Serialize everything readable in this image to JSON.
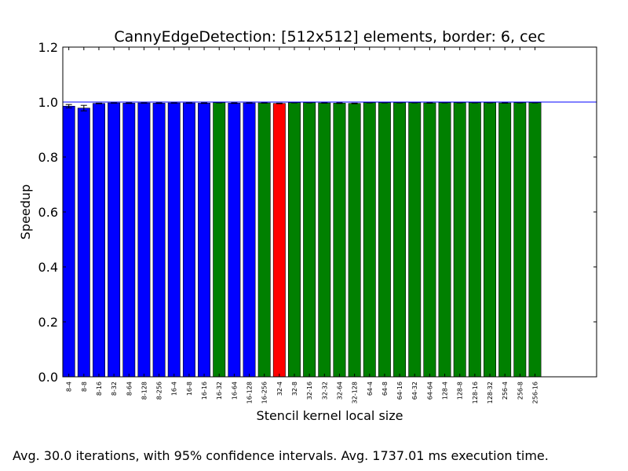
{
  "chart_data": {
    "type": "bar",
    "title": "CannyEdgeDetection: [512x512] elements, border: 6, cec",
    "xlabel": "Stencil kernel local size",
    "ylabel": "Speedup",
    "ylim": [
      0,
      1.2
    ],
    "yticks": [
      "0.0",
      "0.2",
      "0.4",
      "0.6",
      "0.8",
      "1.0",
      "1.2"
    ],
    "reference_line": 1.0,
    "categories": [
      "8-4",
      "8-8",
      "8-16",
      "8-32",
      "8-64",
      "8-128",
      "8-256",
      "16-4",
      "16-8",
      "16-16",
      "16-32",
      "16-64",
      "16-128",
      "16-256",
      "32-4",
      "32-8",
      "32-16",
      "32-32",
      "32-64",
      "32-128",
      "64-4",
      "64-8",
      "64-16",
      "64-32",
      "64-64",
      "128-4",
      "128-8",
      "128-16",
      "128-32",
      "256-4",
      "256-8",
      "256-16"
    ],
    "values": [
      0.985,
      0.978,
      0.995,
      0.997,
      0.996,
      0.997,
      0.996,
      0.997,
      0.997,
      0.996,
      0.998,
      0.996,
      0.997,
      0.997,
      0.995,
      0.998,
      0.998,
      0.997,
      0.996,
      0.995,
      0.998,
      0.998,
      0.998,
      0.998,
      0.997,
      0.998,
      0.998,
      0.998,
      0.998,
      0.997,
      0.998,
      0.998
    ],
    "errors": [
      0.006,
      0.01,
      0.001,
      0.001,
      0.001,
      0.001,
      0.001,
      0.001,
      0.001,
      0.001,
      0.001,
      0.001,
      0.001,
      0.001,
      0.001,
      0.001,
      0.001,
      0.001,
      0.001,
      0.001,
      0.001,
      0.001,
      0.001,
      0.001,
      0.001,
      0.001,
      0.001,
      0.001,
      0.001,
      0.001,
      0.001,
      0.001
    ],
    "bar_colors": [
      "#0000ff",
      "#0000ff",
      "#0000ff",
      "#0000ff",
      "#0000ff",
      "#0000ff",
      "#0000ff",
      "#0000ff",
      "#0000ff",
      "#0000ff",
      "#008000",
      "#0000ff",
      "#0000ff",
      "#008000",
      "#ff0000",
      "#008000",
      "#008000",
      "#008000",
      "#008000",
      "#008000",
      "#008000",
      "#008000",
      "#008000",
      "#008000",
      "#008000",
      "#008000",
      "#008000",
      "#008000",
      "#008000",
      "#008000",
      "#008000",
      "#008000"
    ],
    "reference_line_color": "#0000ff",
    "grid": false
  },
  "footnote": "Avg. 30.0 iterations, with 95% confidence intervals. Avg. 1737.01 ms execution time."
}
